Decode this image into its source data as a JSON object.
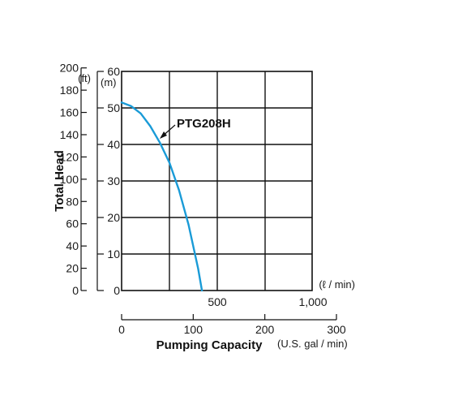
{
  "chart_data": {
    "type": "line",
    "title": "",
    "ylabel": "Total Head",
    "xlabel": "Pumping Capacity",
    "x_unit_primary": "(ℓ / min)",
    "x_unit_secondary": "(U.S. gal / min)",
    "y_unit_left": "(ft)",
    "y_unit_right": "(m)",
    "xlim_lpm": [
      0,
      1000
    ],
    "ylim_m": [
      0,
      60
    ],
    "grid": true,
    "x_ticks_lpm": [
      "500",
      "1,000"
    ],
    "x_ticks_gpm": [
      "0",
      "100",
      "200",
      "300"
    ],
    "y_ticks_m": [
      "0",
      "10",
      "20",
      "30",
      "40",
      "50",
      "60"
    ],
    "y_ticks_ft": [
      "0",
      "20",
      "40",
      "60",
      "80",
      "100",
      "120",
      "140",
      "160",
      "180",
      "200"
    ],
    "series": [
      {
        "name": "PTG208H",
        "color": "#1a9bd7",
        "x_lpm": [
          0,
          50,
          100,
          150,
          200,
          250,
          300,
          350,
          400,
          420
        ],
        "y_m": [
          51.5,
          50.5,
          48.5,
          45,
          40.5,
          35,
          27.5,
          18,
          6,
          0
        ]
      }
    ]
  }
}
